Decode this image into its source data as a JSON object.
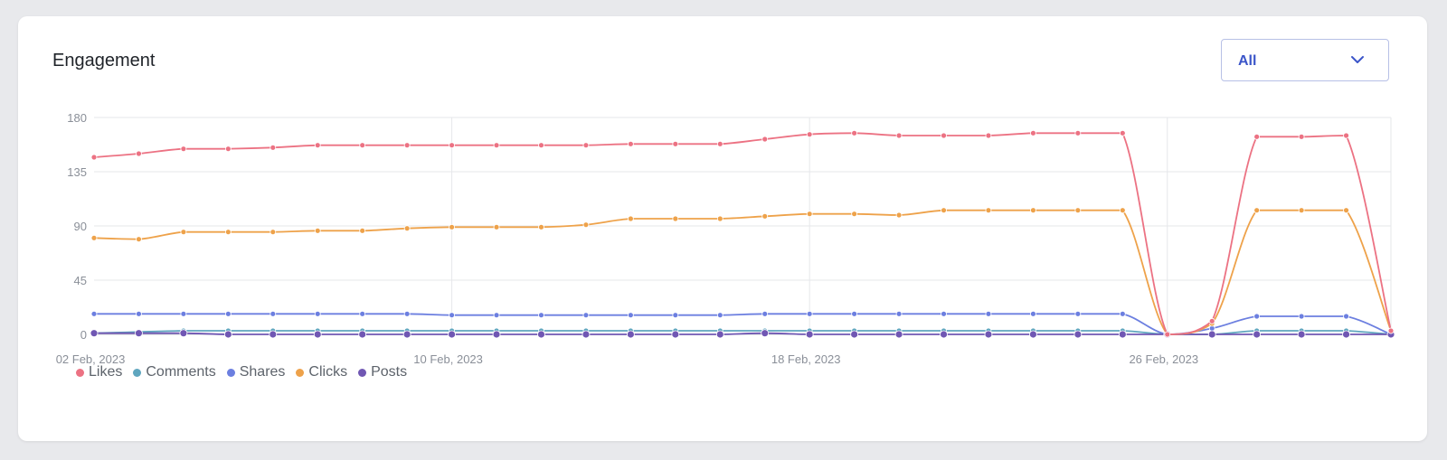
{
  "card": {
    "title": "Engagement"
  },
  "filter": {
    "selected": "All",
    "icon": "chevron-down-icon"
  },
  "colors": {
    "accent": "#3b55c9",
    "Likes": "#ec7283",
    "Comments": "#5fa6bf",
    "Shares": "#6c7fe0",
    "Clicks": "#eea24a",
    "Posts": "#7057b3"
  },
  "chart_data": {
    "type": "line",
    "y_ticks": [
      "180",
      "135",
      "90",
      "45",
      "0"
    ],
    "ylim": [
      0,
      180
    ],
    "x_tick_labels": [
      {
        "label": "02 Feb, 2023",
        "index": 0
      },
      {
        "label": "10 Feb, 2023",
        "index": 8
      },
      {
        "label": "18 Feb, 2023",
        "index": 16
      },
      {
        "label": "26 Feb, 2023",
        "index": 24
      }
    ],
    "x": [
      "02 Feb, 2023",
      "03 Feb, 2023",
      "04 Feb, 2023",
      "05 Feb, 2023",
      "06 Feb, 2023",
      "07 Feb, 2023",
      "08 Feb, 2023",
      "09 Feb, 2023",
      "10 Feb, 2023",
      "11 Feb, 2023",
      "12 Feb, 2023",
      "13 Feb, 2023",
      "14 Feb, 2023",
      "15 Feb, 2023",
      "16 Feb, 2023",
      "17 Feb, 2023",
      "18 Feb, 2023",
      "19 Feb, 2023",
      "20 Feb, 2023",
      "21 Feb, 2023",
      "22 Feb, 2023",
      "23 Feb, 2023",
      "24 Feb, 2023",
      "25 Feb, 2023",
      "26 Feb, 2023",
      "27 Feb, 2023",
      "28 Feb, 2023",
      "01 Mar, 2023",
      "02 Mar, 2023",
      "03 Mar, 2023"
    ],
    "grid": true,
    "legend_position": "bottom-left",
    "series": [
      {
        "name": "Likes",
        "values": [
          147,
          150,
          154,
          154,
          155,
          157,
          157,
          157,
          157,
          157,
          157,
          157,
          158,
          158,
          158,
          162,
          166,
          167,
          165,
          165,
          165,
          167,
          167,
          167,
          0,
          11,
          164,
          164,
          165,
          3
        ]
      },
      {
        "name": "Comments",
        "values": [
          1,
          2,
          3,
          3,
          3,
          3,
          3,
          3,
          3,
          3,
          3,
          3,
          3,
          3,
          3,
          3,
          3,
          3,
          3,
          3,
          3,
          3,
          3,
          3,
          0,
          0,
          3,
          3,
          3,
          0
        ]
      },
      {
        "name": "Shares",
        "values": [
          17,
          17,
          17,
          17,
          17,
          17,
          17,
          17,
          16,
          16,
          16,
          16,
          16,
          16,
          16,
          17,
          17,
          17,
          17,
          17,
          17,
          17,
          17,
          17,
          0,
          5,
          15,
          15,
          15,
          0
        ]
      },
      {
        "name": "Clicks",
        "values": [
          80,
          79,
          85,
          85,
          85,
          86,
          86,
          88,
          89,
          89,
          89,
          91,
          96,
          96,
          96,
          98,
          100,
          100,
          99,
          103,
          103,
          103,
          103,
          103,
          0,
          9,
          103,
          103,
          103,
          3
        ]
      },
      {
        "name": "Posts",
        "values": [
          1,
          1,
          1,
          0,
          0,
          0,
          0,
          0,
          0,
          0,
          0,
          0,
          0,
          0,
          0,
          1,
          0,
          0,
          0,
          0,
          0,
          0,
          0,
          0,
          0,
          0,
          0,
          0,
          0,
          0
        ]
      }
    ]
  }
}
